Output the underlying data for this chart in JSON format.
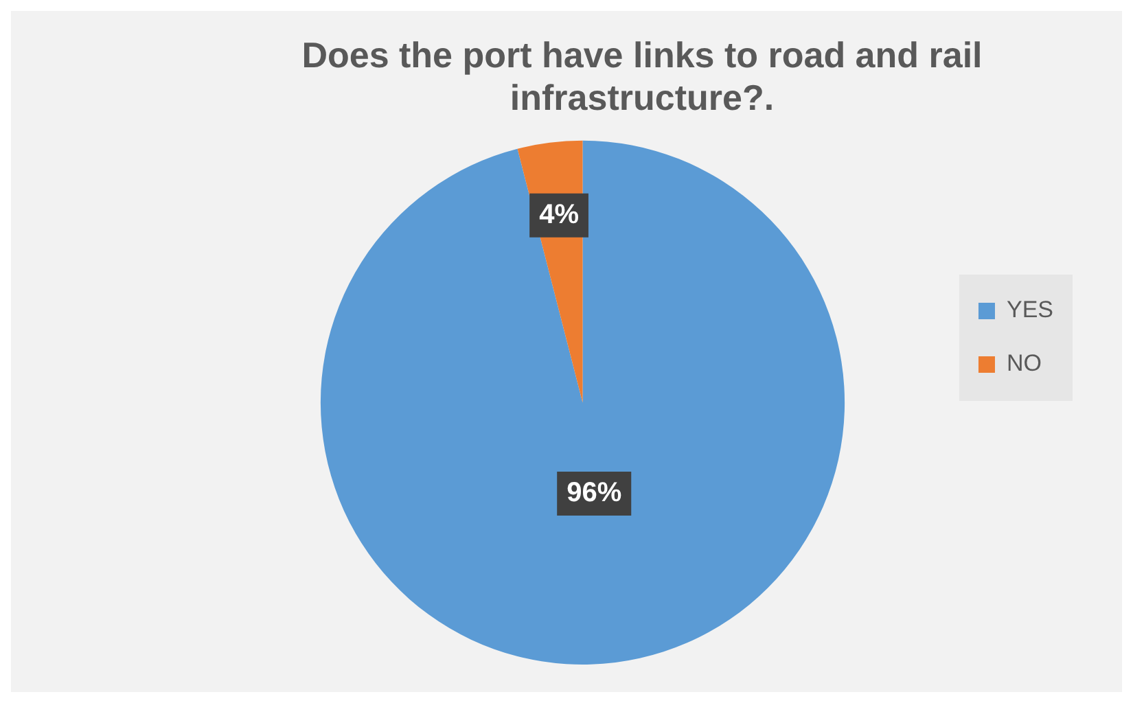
{
  "chart_data": {
    "type": "pie",
    "title": "Does the port have links to road and rail infrastructure?.",
    "categories": [
      "YES",
      "NO"
    ],
    "values": [
      96,
      4
    ],
    "colors": [
      "#5b9bd5",
      "#ed7d31"
    ],
    "value_labels": [
      "96%",
      "4%"
    ],
    "legend": "right"
  }
}
